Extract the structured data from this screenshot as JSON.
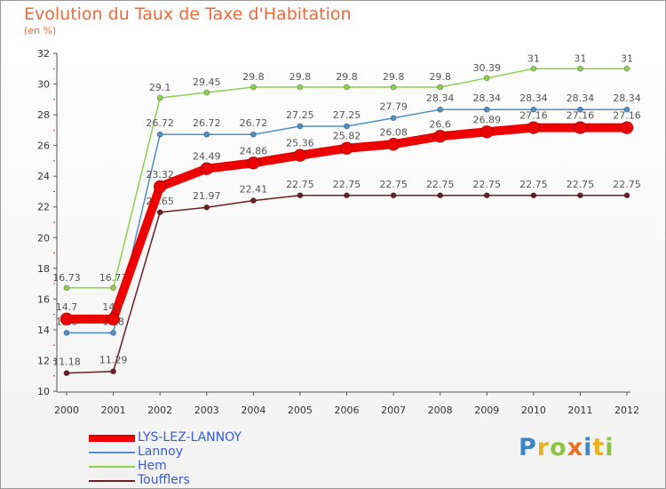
{
  "chart_data": {
    "type": "line",
    "title": "Evolution du Taux de Taxe d'Habitation",
    "ylabel": "(en %)",
    "xlabel": "",
    "ylim": [
      10,
      32
    ],
    "yticks": [
      10,
      12,
      14,
      16,
      18,
      20,
      22,
      24,
      26,
      28,
      30,
      32
    ],
    "x": [
      2000,
      2001,
      2002,
      2003,
      2004,
      2005,
      2006,
      2007,
      2008,
      2009,
      2010,
      2011,
      2012
    ],
    "series": [
      {
        "name": "Toufflers",
        "color": "#6b1f24",
        "values": [
          11.18,
          11.29,
          21.65,
          21.97,
          22.41,
          22.75,
          22.75,
          22.75,
          22.75,
          22.75,
          22.75,
          22.75,
          22.75
        ]
      },
      {
        "name": "Hem",
        "color": "#8ed04f",
        "values": [
          16.73,
          16.73,
          29.1,
          29.45,
          29.8,
          29.8,
          29.8,
          29.8,
          29.8,
          30.39,
          31,
          31,
          31
        ]
      },
      {
        "name": "Lannoy",
        "color": "#4f8fc9",
        "values": [
          13.8,
          13.8,
          26.72,
          26.72,
          26.72,
          27.25,
          27.25,
          27.79,
          28.34,
          28.34,
          28.34,
          28.34,
          28.34
        ]
      },
      {
        "name": "LYS-LEZ-LANNOY",
        "color": "#ee0000",
        "values": [
          14.7,
          14.7,
          23.32,
          24.49,
          24.86,
          25.36,
          25.82,
          26.08,
          26.6,
          26.89,
          27.16,
          27.16,
          27.16
        ]
      }
    ],
    "legend": [
      "LYS-LEZ-LANNOY",
      "Lannoy",
      "Hem",
      "Toufflers"
    ],
    "grid": false
  },
  "labels": {
    "Toufflers": [
      "11.18",
      "11.29",
      "21.65",
      "21.97",
      "22.41",
      "22.75",
      "22.75",
      "22.75",
      "22.75",
      "22.75",
      "22.75",
      "22.75",
      "22.75"
    ],
    "Hem": [
      "16.73",
      "16.73",
      "29.1",
      "29.45",
      "29.8",
      "29.8",
      "29.8",
      "29.8",
      "29.8",
      "30.39",
      "31",
      "31",
      "31"
    ],
    "Lannoy": [
      "13.8",
      "13.8",
      "26.72",
      "26.72",
      "26.72",
      "27.25",
      "27.25",
      "27.79",
      "28.34",
      "28.34",
      "28.34",
      "28.34",
      "28.34"
    ],
    "LYS-LEZ-LANNOY": [
      "14.7",
      "14.7",
      "23.32",
      "24.49",
      "24.86",
      "25.36",
      "25.82",
      "26.08",
      "26.6",
      "26.89",
      "27.16",
      "27.16",
      "27.16"
    ]
  },
  "logo": {
    "letters": [
      "P",
      "r",
      "o",
      "x",
      "i",
      "t",
      "i"
    ],
    "colors": [
      "#3a86c8",
      "#e8b21c",
      "#8cc540",
      "#e8702a",
      "#3a86c8",
      "#e8b21c",
      "#8cc540"
    ]
  }
}
